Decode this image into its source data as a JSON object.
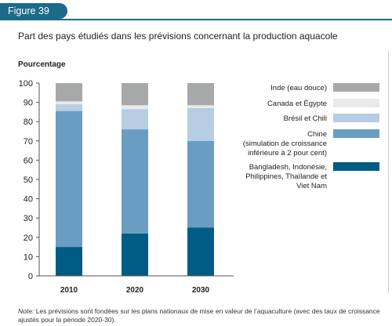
{
  "figure_label": "Figure 39",
  "title": "Part des pays étudiés dans les prévisions concernant la production aquacole",
  "note_prefix": "Note:",
  "note_text": " Les prévisions sont fondées sur les plans nationaux de mise en valeur de l’aquaculture (avec des taux de croissance ajustés pour la période 2020-30).",
  "colors": {
    "inde": "#a7a8aa",
    "canada_egypte": "#e9eaeb",
    "bresil_chili": "#b6cde3",
    "chine": "#6a9dc2",
    "bangladesh": "#005c84"
  },
  "chart_data": {
    "type": "bar",
    "stacked": true,
    "ylabel": "Pourcentage",
    "ylim": [
      0,
      100
    ],
    "yticks": [
      0,
      10,
      20,
      30,
      40,
      50,
      60,
      70,
      80,
      90,
      100
    ],
    "categories": [
      "2010",
      "2020",
      "2030"
    ],
    "series": [
      {
        "name": "Bangladesh, Indonésie, Philippines, Thaïlande et Viet Nam",
        "label_lines": [
          "Bangladesh, Indonésie,",
          "Philippines, Thaïlande et",
          "Viet Nam"
        ],
        "color": "#005c84",
        "values": [
          15,
          22,
          25
        ]
      },
      {
        "name": "Chine (simulation de croissance inférieure à 2 pour cent)",
        "label_lines": [
          "Chine",
          "(simulation de croissance",
          "inférieure à 2 pour cent)"
        ],
        "color": "#6a9dc2",
        "values": [
          70.5,
          54,
          45
        ]
      },
      {
        "name": "Brésil et Chili",
        "label_lines": [
          "Brésil et Chili"
        ],
        "color": "#b6cde3",
        "values": [
          3.5,
          10.5,
          17
        ]
      },
      {
        "name": "Canada et Égypte",
        "label_lines": [
          "Canada et Égypte"
        ],
        "color": "#e9eaeb",
        "values": [
          1.5,
          2,
          1.5
        ]
      },
      {
        "name": "Inde (eau douce)",
        "label_lines": [
          "Inde (eau douce)"
        ],
        "color": "#a7a8aa",
        "values": [
          9.5,
          11.5,
          11.5
        ]
      }
    ],
    "legend_position": "right",
    "grid": false
  }
}
